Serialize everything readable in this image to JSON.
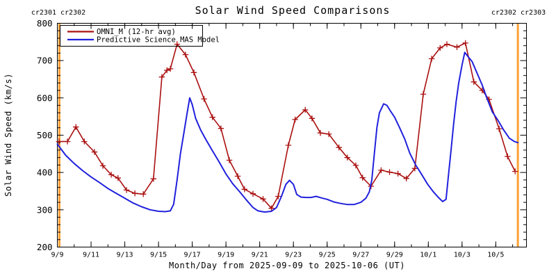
{
  "chart_data": {
    "type": "line",
    "title": "Solar Wind Speed Comparisons",
    "xlabel": "Month/Day from 2025-09-09 to 2025-10-06 (UT)",
    "ylabel": "Solar Wind Speed (km/s)",
    "ylim": [
      200,
      800
    ],
    "y_major_ticks": [
      200,
      300,
      400,
      500,
      600,
      700,
      800
    ],
    "y_minor_step": 20,
    "grid": false,
    "legend_position": "top-left",
    "x_axis": {
      "start_date": "2025-09-09",
      "end_date": "2025-10-06",
      "days_span": 27.82,
      "minor_step_days": 1,
      "major_ticks": [
        {
          "day": 0,
          "label": "9/9"
        },
        {
          "day": 2,
          "label": "9/11"
        },
        {
          "day": 4,
          "label": "9/13"
        },
        {
          "day": 6,
          "label": "9/15"
        },
        {
          "day": 8,
          "label": "9/17"
        },
        {
          "day": 10,
          "label": "9/19"
        },
        {
          "day": 12,
          "label": "9/21"
        },
        {
          "day": 14,
          "label": "9/23"
        },
        {
          "day": 16,
          "label": "9/25"
        },
        {
          "day": 18,
          "label": "9/27"
        },
        {
          "day": 20,
          "label": "9/29"
        },
        {
          "day": 22,
          "label": "10/1"
        },
        {
          "day": 24,
          "label": "10/3"
        },
        {
          "day": 26,
          "label": "10/5"
        }
      ]
    },
    "series": [
      {
        "name": "OMNI_M (12-hr avg)",
        "color": "#aa0f0f",
        "marker": "plus",
        "points": [
          [
            0.1,
            483
          ],
          [
            0.6,
            483
          ],
          [
            1.1,
            522
          ],
          [
            1.6,
            483
          ],
          [
            2.2,
            455
          ],
          [
            2.7,
            418
          ],
          [
            3.2,
            394
          ],
          [
            3.6,
            385
          ],
          [
            4.1,
            353
          ],
          [
            4.6,
            344
          ],
          [
            5.1,
            342
          ],
          [
            5.7,
            383
          ],
          [
            6.2,
            656
          ],
          [
            6.5,
            674
          ],
          [
            6.7,
            678
          ],
          [
            7.1,
            744
          ],
          [
            7.6,
            716
          ],
          [
            8.1,
            668
          ],
          [
            8.7,
            597
          ],
          [
            9.2,
            548
          ],
          [
            9.7,
            518
          ],
          [
            10.2,
            433
          ],
          [
            10.7,
            390
          ],
          [
            11.1,
            355
          ],
          [
            11.6,
            343
          ],
          [
            12.2,
            329
          ],
          [
            12.7,
            304
          ],
          [
            13.1,
            336
          ],
          [
            13.7,
            473
          ],
          [
            14.1,
            542
          ],
          [
            14.7,
            568
          ],
          [
            15.1,
            545
          ],
          [
            15.6,
            506
          ],
          [
            16.1,
            503
          ],
          [
            16.7,
            467
          ],
          [
            17.2,
            440
          ],
          [
            17.7,
            419
          ],
          [
            18.1,
            386
          ],
          [
            18.6,
            363
          ],
          [
            19.2,
            406
          ],
          [
            19.7,
            401
          ],
          [
            20.2,
            397
          ],
          [
            20.7,
            384
          ],
          [
            21.2,
            411
          ],
          [
            21.7,
            610
          ],
          [
            22.2,
            705
          ],
          [
            22.7,
            734
          ],
          [
            23.1,
            744
          ],
          [
            23.7,
            736
          ],
          [
            24.2,
            747
          ],
          [
            24.7,
            643
          ],
          [
            25.2,
            620
          ],
          [
            25.6,
            596
          ],
          [
            26.2,
            517
          ],
          [
            26.7,
            443
          ],
          [
            27.15,
            403
          ]
        ]
      },
      {
        "name": "Predictive Science MAS Model",
        "color": "#2020dd",
        "marker": "none",
        "points": [
          [
            0,
            476
          ],
          [
            0.5,
            446
          ],
          [
            1,
            424
          ],
          [
            1.5,
            405
          ],
          [
            2,
            388
          ],
          [
            2.5,
            373
          ],
          [
            3,
            357
          ],
          [
            3.5,
            344
          ],
          [
            4,
            331
          ],
          [
            4.5,
            318
          ],
          [
            5,
            308
          ],
          [
            5.5,
            300
          ],
          [
            6,
            296
          ],
          [
            6.4,
            295
          ],
          [
            6.7,
            297
          ],
          [
            6.9,
            315
          ],
          [
            7.1,
            380
          ],
          [
            7.3,
            450
          ],
          [
            7.5,
            505
          ],
          [
            7.7,
            560
          ],
          [
            7.85,
            600
          ],
          [
            8.0,
            582
          ],
          [
            8.2,
            545
          ],
          [
            8.5,
            514
          ],
          [
            8.8,
            489
          ],
          [
            9.2,
            458
          ],
          [
            9.6,
            428
          ],
          [
            10.0,
            396
          ],
          [
            10.4,
            370
          ],
          [
            10.8,
            349
          ],
          [
            11.2,
            327
          ],
          [
            11.6,
            306
          ],
          [
            11.9,
            297
          ],
          [
            12.3,
            294
          ],
          [
            12.7,
            296
          ],
          [
            13.0,
            306
          ],
          [
            13.3,
            337
          ],
          [
            13.55,
            368
          ],
          [
            13.77,
            379
          ],
          [
            14.0,
            368
          ],
          [
            14.2,
            341
          ],
          [
            14.45,
            334
          ],
          [
            14.75,
            333
          ],
          [
            15.05,
            333
          ],
          [
            15.35,
            336
          ],
          [
            15.65,
            332
          ],
          [
            16.0,
            328
          ],
          [
            16.4,
            321
          ],
          [
            16.8,
            317
          ],
          [
            17.2,
            314
          ],
          [
            17.6,
            314
          ],
          [
            18.0,
            320
          ],
          [
            18.3,
            331
          ],
          [
            18.5,
            348
          ],
          [
            18.65,
            380
          ],
          [
            18.8,
            450
          ],
          [
            18.95,
            520
          ],
          [
            19.1,
            560
          ],
          [
            19.35,
            584
          ],
          [
            19.55,
            580
          ],
          [
            19.75,
            565
          ],
          [
            20.0,
            548
          ],
          [
            20.3,
            520
          ],
          [
            20.6,
            490
          ],
          [
            20.9,
            452
          ],
          [
            21.25,
            420
          ],
          [
            21.6,
            395
          ],
          [
            21.95,
            369
          ],
          [
            22.3,
            348
          ],
          [
            22.6,
            333
          ],
          [
            22.85,
            322
          ],
          [
            23.05,
            328
          ],
          [
            23.2,
            395
          ],
          [
            23.35,
            460
          ],
          [
            23.5,
            530
          ],
          [
            23.65,
            590
          ],
          [
            23.8,
            640
          ],
          [
            24.0,
            688
          ],
          [
            24.16,
            722
          ],
          [
            24.35,
            711
          ],
          [
            24.6,
            697
          ],
          [
            24.9,
            665
          ],
          [
            25.2,
            634
          ],
          [
            25.45,
            602
          ],
          [
            25.8,
            562
          ],
          [
            26.1,
            542
          ],
          [
            26.45,
            515
          ],
          [
            26.8,
            492
          ],
          [
            27.1,
            483
          ],
          [
            27.31,
            480
          ]
        ]
      }
    ],
    "carrington_boundaries": {
      "color": "#ffa033",
      "left_label": "cr2301 cr2302",
      "right_label": "cr2302 cr2303",
      "lines_at_day": [
        0.12,
        27.31
      ]
    }
  }
}
